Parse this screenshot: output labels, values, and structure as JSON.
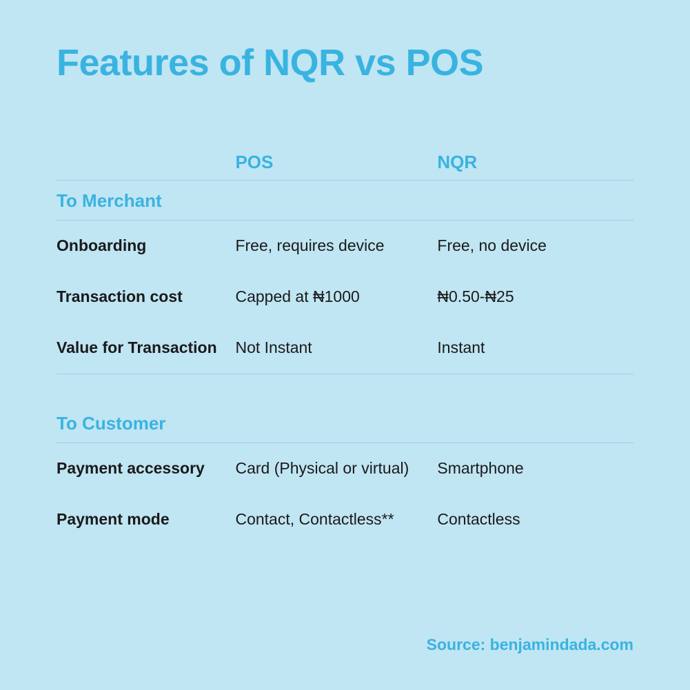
{
  "colors": {
    "background": "#c0e5f3",
    "accent": "#39b3e0",
    "text": "#1a1a1a",
    "rule": "#9fcfdf"
  },
  "title": "Features of NQR vs POS",
  "columns": {
    "label": "",
    "pos": "POS",
    "nqr": "NQR"
  },
  "sections": [
    {
      "heading": "To Merchant",
      "rows": [
        {
          "label": "Onboarding",
          "pos": "Free, requires device",
          "nqr": "Free, no device"
        },
        {
          "label": "Transaction cost",
          "pos": "Capped at ₦1000",
          "nqr": "₦0.50-₦25"
        },
        {
          "label": "Value for Transaction",
          "pos": "Not Instant",
          "nqr": "Instant"
        }
      ]
    },
    {
      "heading": "To Customer",
      "rows": [
        {
          "label": "Payment accessory",
          "pos": "Card (Physical or virtual)",
          "nqr": "Smartphone"
        },
        {
          "label": "Payment mode",
          "pos": "Contact, Contactless**",
          "nqr": "Contactless"
        }
      ]
    }
  ],
  "source": "Source: benjamindada.com",
  "typography": {
    "title_fontsize": 54,
    "header_fontsize": 26,
    "body_fontsize": 23
  }
}
